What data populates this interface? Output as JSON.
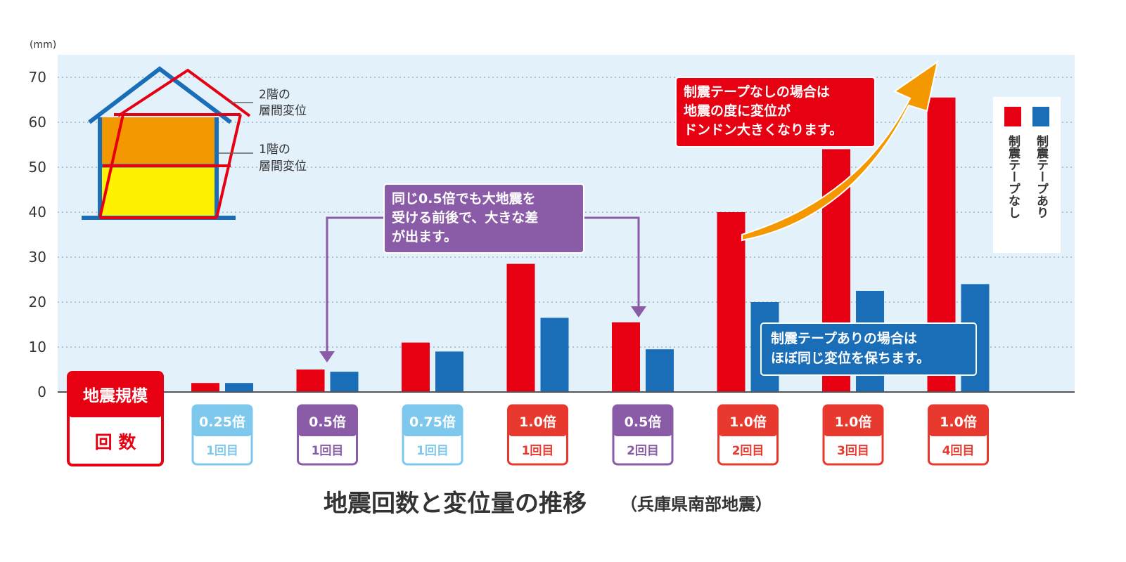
{
  "chart_data": {
    "type": "bar",
    "title": "地震回数と変位量の推移",
    "subtitle": "（兵庫県南部地震）",
    "ylabel": "(mm)",
    "ylim": [
      0,
      75
    ],
    "yticks": [
      0,
      10,
      20,
      30,
      40,
      50,
      60,
      70
    ],
    "grid": true,
    "legend_position": "right",
    "row_header_scale": "地震規模",
    "row_header_count": "回 数",
    "categories": [
      {
        "scale": "0.25倍",
        "count": "1回目",
        "color": "#7ec8ee"
      },
      {
        "scale": "0.5倍",
        "count": "1回目",
        "color": "#8a5ba6"
      },
      {
        "scale": "0.75倍",
        "count": "1回目",
        "color": "#7ec8ee"
      },
      {
        "scale": "1.0倍",
        "count": "1回目",
        "color": "#e8392f"
      },
      {
        "scale": "0.5倍",
        "count": "2回目",
        "color": "#8a5ba6"
      },
      {
        "scale": "1.0倍",
        "count": "2回目",
        "color": "#e8392f"
      },
      {
        "scale": "1.0倍",
        "count": "3回目",
        "color": "#e8392f"
      },
      {
        "scale": "1.0倍",
        "count": "4回目",
        "color": "#e8392f"
      }
    ],
    "series": [
      {
        "name": "制震テープなし",
        "color": "#e60012",
        "values": [
          2,
          5,
          11,
          28.5,
          15.5,
          40,
          54,
          65.5
        ]
      },
      {
        "name": "制震テープあり",
        "color": "#1a6eb8",
        "values": [
          2,
          4.5,
          9,
          16.5,
          9.5,
          20,
          22.5,
          24
        ]
      }
    ]
  },
  "annotations": {
    "red_note": [
      "制震テープなしの場合は",
      "地震の度に変位が",
      "ドンドン大きくなります。"
    ],
    "purple_note": [
      "同じ0.5倍でも大地震を",
      "受ける前後で、大きな差",
      "が出ます。"
    ],
    "blue_note": [
      "制震テープありの場合は",
      "ほぼ同じ変位を保ちます。"
    ]
  },
  "house": {
    "floor2_label": [
      "2階の",
      "層間変位"
    ],
    "floor1_label": [
      "1階の",
      "層間変位"
    ]
  }
}
